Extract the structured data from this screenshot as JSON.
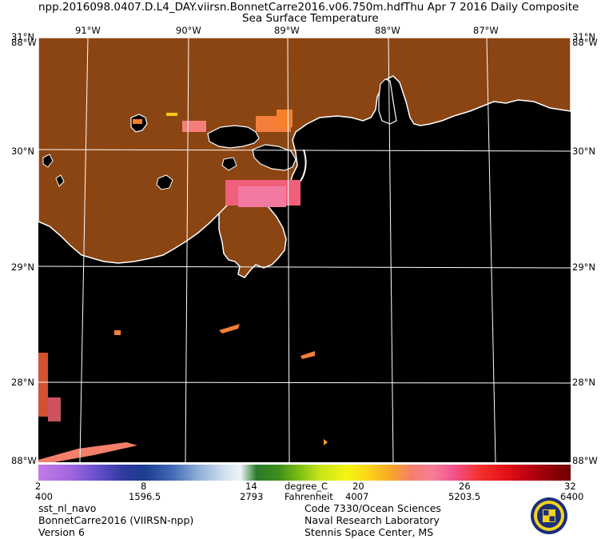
{
  "header": {
    "filename": "npp.2016098.0407.D.L4_DAY.viirsn.BonnetCarre2016.v06.750m.hdf",
    "date": "Thu Apr  7 2016 Daily Composite",
    "product": "Sea Surface Temperature"
  },
  "map": {
    "lat_labels": [
      "31°N",
      "30°N",
      "29°N",
      "28°N"
    ],
    "lon_labels": [
      "91°W",
      "90°W",
      "89°W",
      "88°W",
      "87°W"
    ],
    "corner_labels": [
      "31°N",
      "88°W",
      "31°N",
      "88°W",
      "88°W",
      "88°W"
    ]
  },
  "colorbar": {
    "celsius_ticks": [
      "2",
      "8",
      "14",
      "20",
      "26",
      "32"
    ],
    "celsius_unit": "degree_C",
    "fahrenheit_ticks": [
      "400",
      "1596.5",
      "2793",
      "4007",
      "5203.5",
      "6400"
    ],
    "fahrenheit_unit": "Fahrenheit"
  },
  "footer": {
    "left": [
      "sst_nl_navo",
      "BonnetCarre2016 (VIIRSN-npp)",
      "Version 6"
    ],
    "right": [
      "Code 7330/Ocean Sciences",
      "Naval Research Laboratory",
      "Stennis Space Center, MS"
    ]
  },
  "colors": {
    "land": "#8b4513",
    "ocean": "#000000",
    "coastline": "#ffffff",
    "grid": "#ffffff"
  }
}
